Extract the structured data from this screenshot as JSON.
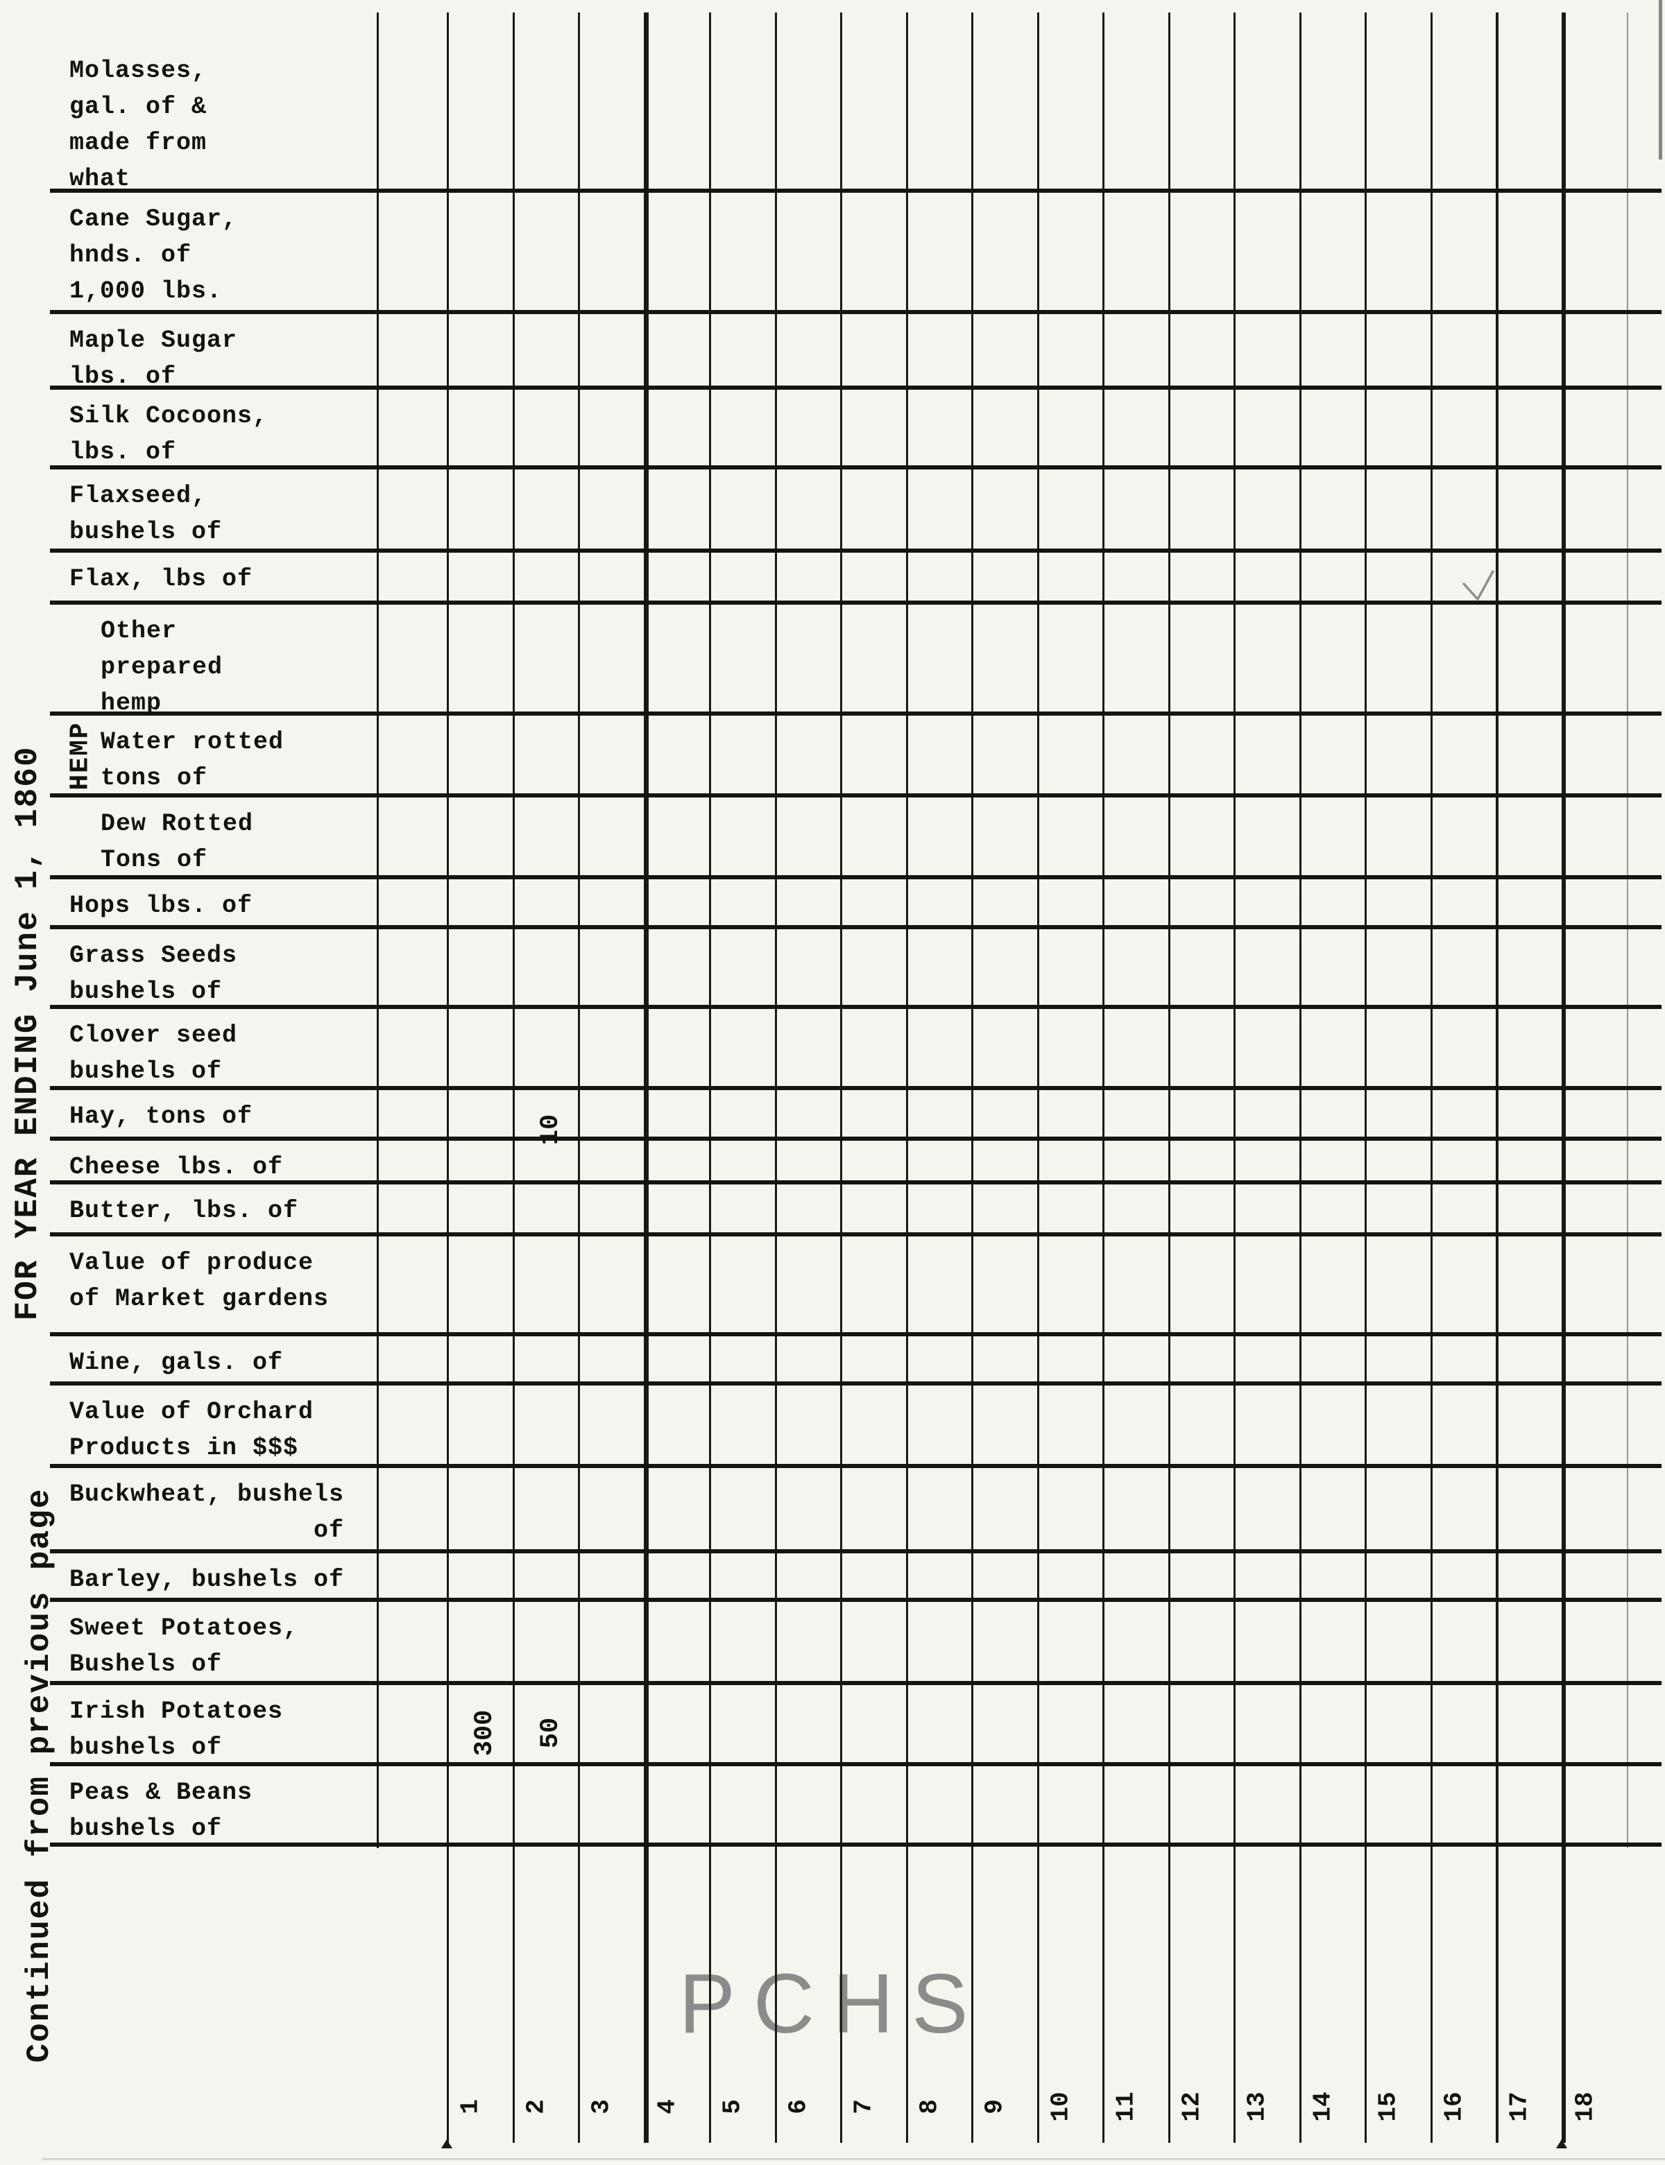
{
  "document": {
    "side_note_year": "FOR YEAR ENDING June 1, 1860",
    "side_note_continued": "Continued from previous page",
    "watermark": "PCHS",
    "hemp_group_label": "HEMP"
  },
  "table": {
    "rows": [
      {
        "label": "Molasses,\ngal. of &\nmade from\nwhat",
        "indent": false
      },
      {
        "label": "Cane Sugar,\nhnds. of\n1,000 lbs.",
        "indent": false
      },
      {
        "label": "Maple Sugar\nlbs. of",
        "indent": false
      },
      {
        "label": "Silk Cocoons,\nlbs. of",
        "indent": false
      },
      {
        "label": "Flaxseed,\nbushels of",
        "indent": false
      },
      {
        "label": "Flax, lbs of",
        "indent": false
      },
      {
        "label": "Other\nprepared\nhemp",
        "indent": true
      },
      {
        "label": "Water rotted\ntons of",
        "indent": true
      },
      {
        "label": "Dew Rotted\nTons of",
        "indent": true
      },
      {
        "label": "Hops lbs. of",
        "indent": false
      },
      {
        "label": "Grass Seeds\nbushels of",
        "indent": false
      },
      {
        "label": "Clover seed\nbushels of",
        "indent": false
      },
      {
        "label": "Hay, tons of",
        "indent": false
      },
      {
        "label": "Cheese lbs. of",
        "indent": false
      },
      {
        "label": "Butter, lbs. of",
        "indent": false
      },
      {
        "label": "Value of produce\nof Market gardens",
        "indent": false
      },
      {
        "label": "Wine, gals. of",
        "indent": false
      },
      {
        "label": "Value of Orchard\nProducts in $$$",
        "indent": false
      },
      {
        "label": "Buckwheat, bushels\n                of",
        "indent": false
      },
      {
        "label": "Barley, bushels of",
        "indent": false
      },
      {
        "label": "Sweet Potatoes,\nBushels of",
        "indent": false
      },
      {
        "label": "Irish Potatoes\nbushels of",
        "indent": false
      },
      {
        "label": "Peas & Beans\nbushels of",
        "indent": false
      }
    ],
    "cell_values": [
      {
        "row_index": 12,
        "column": 2,
        "value": "10"
      },
      {
        "row_index": 21,
        "column": 1,
        "value": "300"
      },
      {
        "row_index": 21,
        "column": 2,
        "value": "50"
      }
    ],
    "column_numbers": [
      "1",
      "2",
      "3",
      "4",
      "5",
      "6",
      "7",
      "8",
      "9",
      "10",
      "11",
      "12",
      "13",
      "14",
      "15",
      "16",
      "17",
      "18"
    ]
  },
  "colors": {
    "ink": "#161412",
    "paper": "#f5f4ef",
    "watermark_gray": "#8b8b8b",
    "pencil_gray": "#8e8e8e"
  }
}
